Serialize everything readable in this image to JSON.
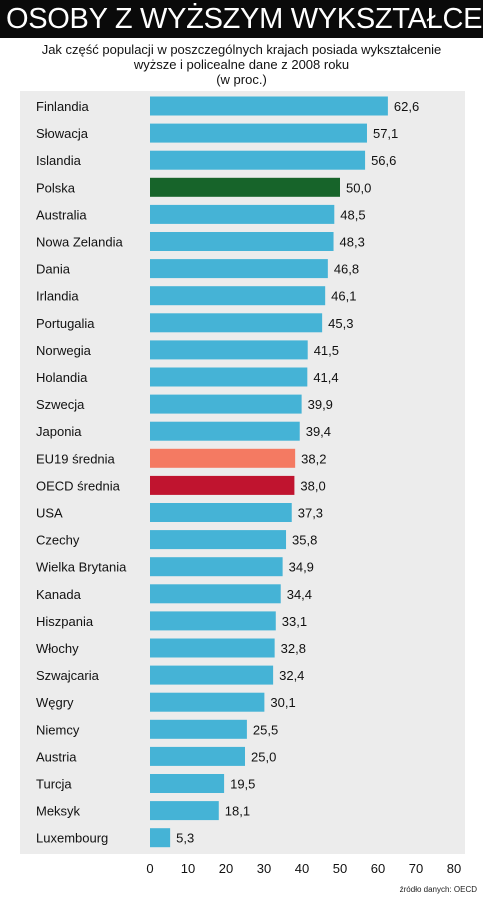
{
  "header": {
    "title": "OSOBY Z WYŻSZYM WYKSZTAŁCENIEM"
  },
  "subtitle": {
    "line1": "Jak część populacji w poszczególnych krajach posiada wykształcenie",
    "line2": "wyższe i policealne dane z 2008 roku",
    "line3": "(w proc.)"
  },
  "source": "źródło danych: OECD",
  "colors": {
    "default": "#45b3d6",
    "polska": "#17642a",
    "eu19": "#f47a62",
    "oecd": "#c0142f"
  },
  "chart_data": {
    "type": "bar",
    "orientation": "horizontal",
    "title": "OSOBY Z WYŻSZYM WYKSZTAŁCENIEM",
    "xlim": [
      0,
      80
    ],
    "xticks": [
      0,
      10,
      20,
      30,
      40,
      50,
      60,
      70,
      80
    ],
    "grid": false,
    "categories": [
      "Finlandia",
      "Słowacja",
      "Islandia",
      "Polska",
      "Australia",
      "Nowa Zelandia",
      "Dania",
      "Irlandia",
      "Portugalia",
      "Norwegia",
      "Holandia",
      "Szwecja",
      "Japonia",
      "EU19  średnia",
      "OECD średnia",
      "USA",
      "Czechy",
      "Wielka Brytania",
      "Kanada",
      "Hiszpania",
      "Włochy",
      "Szwajcaria",
      "Węgry",
      "Niemcy",
      "Austria",
      "Turcja",
      "Meksyk",
      "Luxembourg"
    ],
    "values": [
      62.6,
      57.1,
      56.6,
      50.0,
      48.5,
      48.3,
      46.8,
      46.1,
      45.3,
      41.5,
      41.4,
      39.9,
      39.4,
      38.2,
      38.0,
      37.3,
      35.8,
      34.9,
      34.4,
      33.1,
      32.8,
      32.4,
      30.1,
      25.5,
      25.0,
      19.5,
      18.1,
      5.3
    ],
    "value_labels": [
      "62,6",
      "57,1",
      "56,6",
      "50,0",
      "48,5",
      "48,3",
      "46,8",
      "46,1",
      "45,3",
      "41,5",
      "41,4",
      "39,9",
      "39,4",
      "38,2",
      "38,0",
      "37,3",
      "35,8",
      "34,9",
      "34,4",
      "33,1",
      "32,8",
      "32,4",
      "30,1",
      "25,5",
      "25,0",
      "19,5",
      "18,1",
      "5,3"
    ],
    "highlight": {
      "Polska": "polska",
      "EU19  średnia": "eu19",
      "OECD średnia": "oecd"
    }
  }
}
